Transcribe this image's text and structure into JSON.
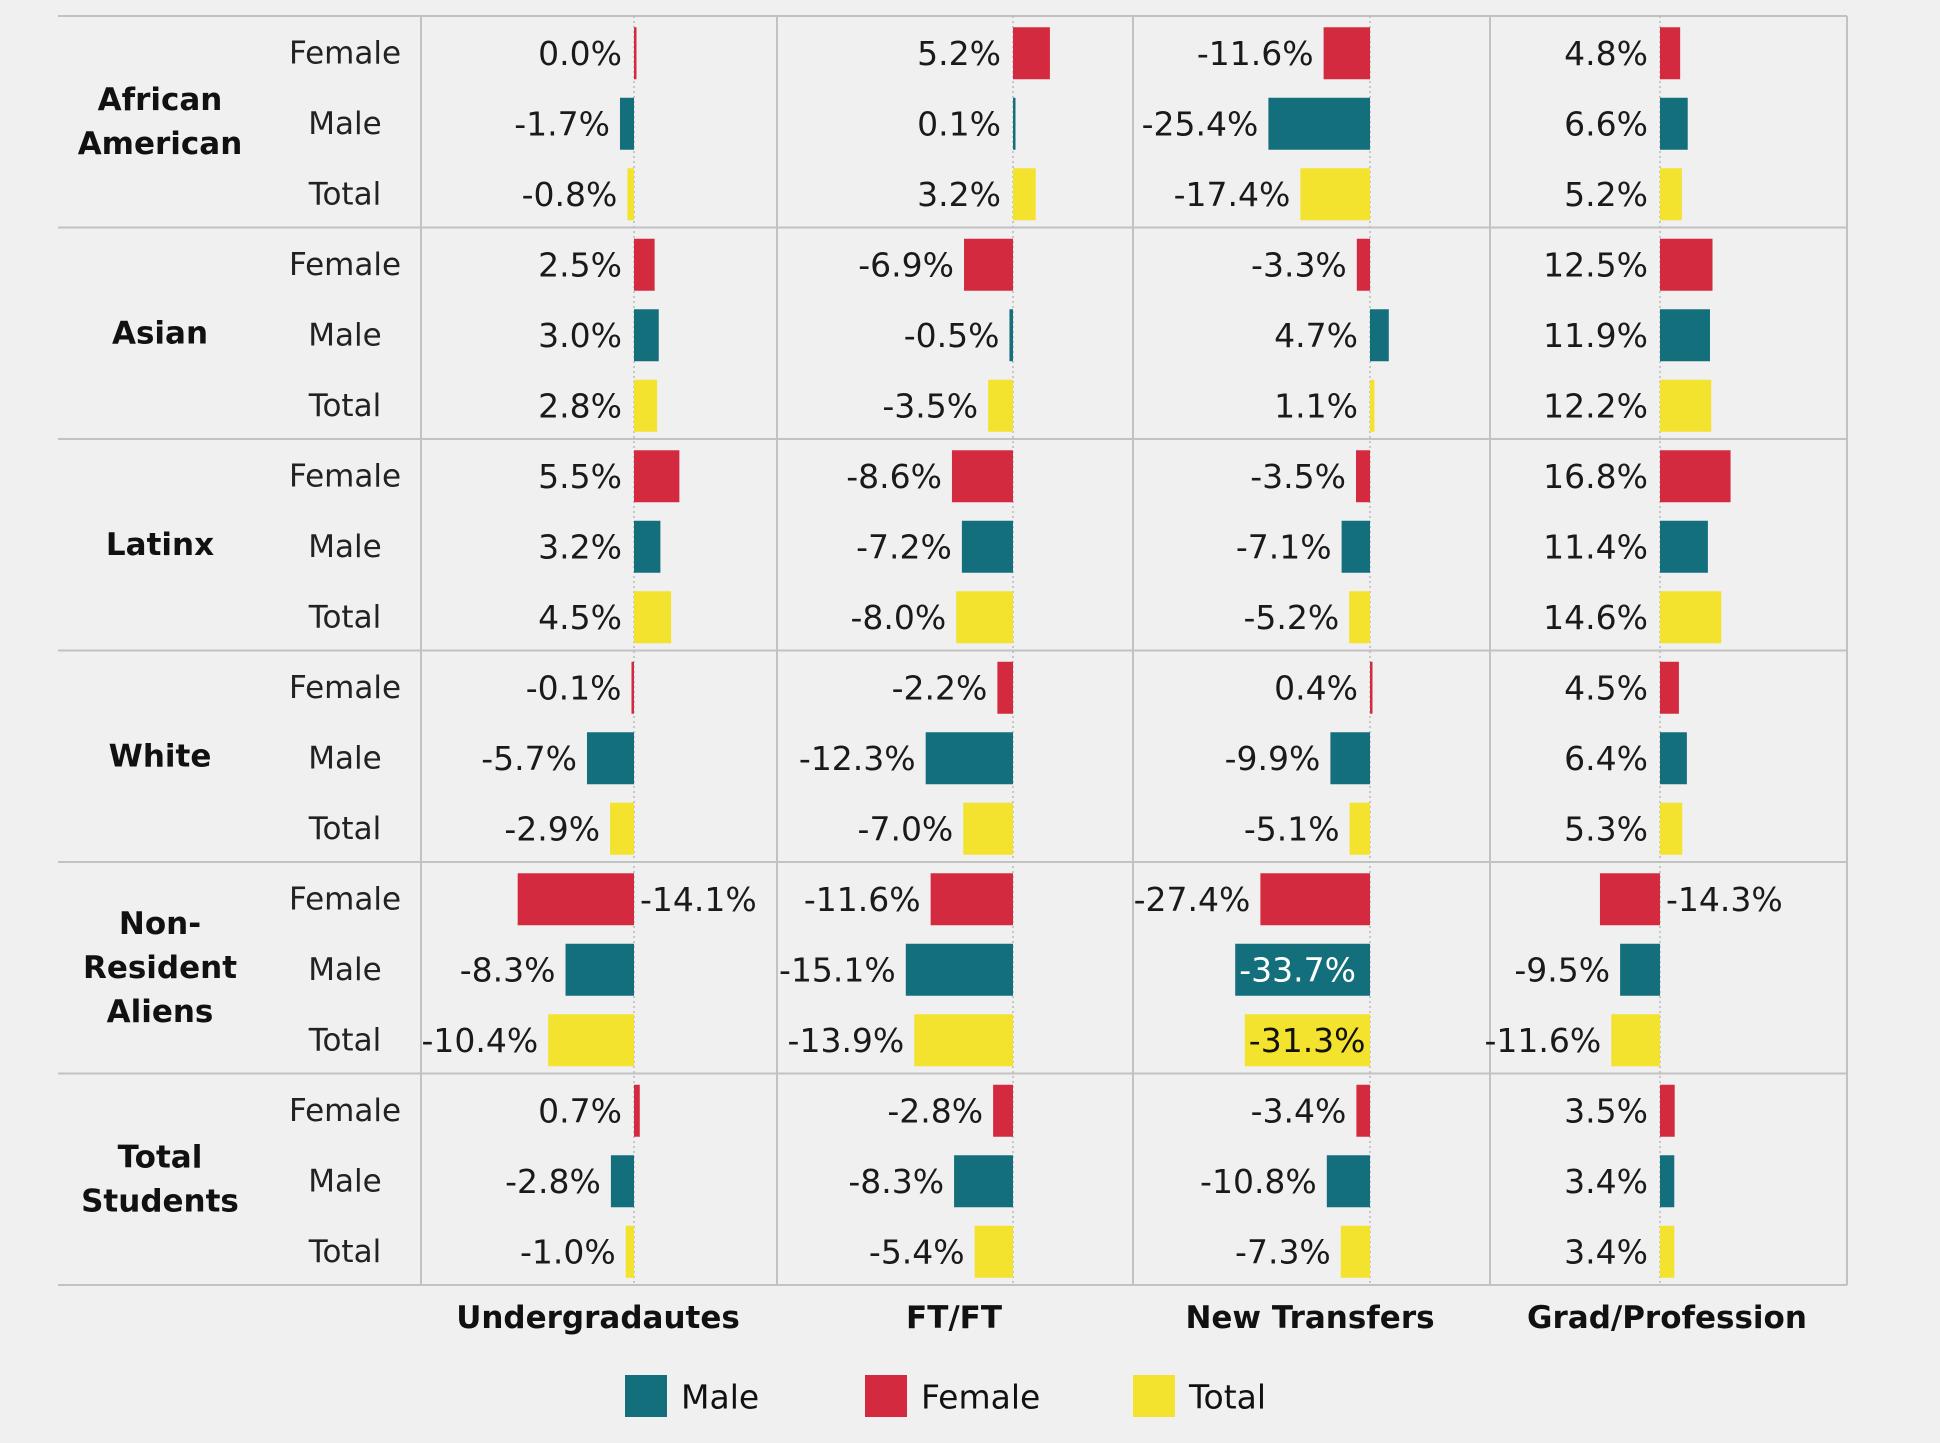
{
  "chart_data": {
    "type": "bar",
    "orientation": "horizontal",
    "groups": [
      "African American",
      "Asian",
      "Latinx",
      "White",
      "Non-Resident Aliens",
      "Total Students"
    ],
    "group_label_lines": [
      [
        "African",
        "American"
      ],
      [
        "Asian"
      ],
      [
        "Latinx"
      ],
      [
        "White"
      ],
      [
        "Non-",
        "Resident",
        "Aliens"
      ],
      [
        "Total",
        "Students"
      ]
    ],
    "rows": [
      "Female",
      "Male",
      "Total"
    ],
    "panels": [
      "Undergradautes",
      "FT/FT",
      "New Transfers",
      "Grad/Profession"
    ],
    "series_colors": {
      "Female": "#d42a3f",
      "Male": "#146f7c",
      "Total": "#f3e22e"
    },
    "legend": [
      {
        "name": "Male",
        "color": "#146f7c"
      },
      {
        "name": "Female",
        "color": "#d42a3f"
      },
      {
        "name": "Total",
        "color": "#f3e22e"
      }
    ],
    "values": {
      "Undergradautes": [
        [
          0.0,
          -1.7,
          -0.8
        ],
        [
          2.5,
          3.0,
          2.8
        ],
        [
          5.5,
          3.2,
          4.5
        ],
        [
          -0.1,
          -5.7,
          -2.9
        ],
        [
          -14.1,
          -8.3,
          -10.4
        ],
        [
          0.7,
          -2.8,
          -1.0
        ]
      ],
      "FT/FT": [
        [
          5.2,
          0.1,
          3.2
        ],
        [
          -6.9,
          -0.5,
          -3.5
        ],
        [
          -8.6,
          -7.2,
          -8.0
        ],
        [
          -2.2,
          -12.3,
          -7.0
        ],
        [
          -11.6,
          -15.1,
          -13.9
        ],
        [
          -2.8,
          -8.3,
          -5.4
        ]
      ],
      "New Transfers": [
        [
          -11.6,
          -25.4,
          -17.4
        ],
        [
          -3.3,
          4.7,
          1.1
        ],
        [
          -3.5,
          -7.1,
          -5.2
        ],
        [
          0.4,
          -9.9,
          -5.1
        ],
        [
          -27.4,
          -33.7,
          -31.3
        ],
        [
          -3.4,
          -10.8,
          -7.3
        ]
      ],
      "Grad/Profession": [
        [
          4.8,
          6.6,
          5.2
        ],
        [
          12.5,
          11.9,
          12.2
        ],
        [
          16.8,
          11.4,
          14.6
        ],
        [
          4.5,
          6.4,
          5.3
        ],
        [
          -14.3,
          -9.5,
          -11.6
        ],
        [
          3.5,
          3.4,
          3.4
        ]
      ]
    },
    "value_suffix": "%"
  }
}
